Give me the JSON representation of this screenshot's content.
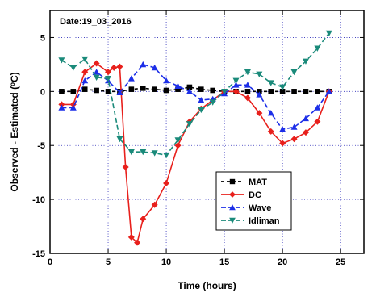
{
  "chart_data": {
    "type": "line",
    "annotation": "Date:19_03_2016",
    "xlabel": "Time (hours)",
    "ylabel_prefix": "Observed - Estimated (",
    "ylabel_degree": "o",
    "ylabel_suffix": "C)",
    "xlim": [
      0,
      27
    ],
    "ylim": [
      -15,
      7.5
    ],
    "xticks": [
      0,
      5,
      10,
      15,
      20,
      25
    ],
    "yticks": [
      5,
      0,
      -5,
      -10,
      -15
    ],
    "grid": true,
    "legend_position": "lower-right",
    "series": [
      {
        "name": "MAT",
        "color": "#000000",
        "marker": "square",
        "x": [
          1,
          2,
          3,
          4,
          5,
          6,
          7,
          8,
          9,
          10,
          11,
          12,
          13,
          14,
          15,
          16,
          17,
          18,
          19,
          20,
          21,
          22,
          23,
          24
        ],
        "y": [
          0,
          0,
          0.2,
          0.1,
          0,
          0,
          0.2,
          0.3,
          0.2,
          0.1,
          0.2,
          0.4,
          0.2,
          0.1,
          0,
          0,
          0,
          0,
          0,
          0,
          0,
          0,
          0,
          0
        ]
      },
      {
        "name": "DC",
        "color": "#e8201c",
        "marker": "diamond",
        "x": [
          1,
          2,
          3,
          4,
          5,
          5.5,
          6,
          6.5,
          7,
          7.5,
          8,
          9,
          10,
          11,
          12,
          13,
          14,
          15,
          16,
          17,
          18,
          19,
          20,
          21,
          22,
          23,
          24
        ],
        "y": [
          -1.2,
          -1.2,
          1.8,
          2.6,
          1.8,
          2.2,
          2.3,
          -7,
          -13.5,
          -14,
          -11.8,
          -10.5,
          -8.5,
          -5,
          -2.8,
          -1.6,
          -0.8,
          0,
          0,
          -0.6,
          -2,
          -3.7,
          -4.8,
          -4.4,
          -3.8,
          -2.8,
          0
        ]
      },
      {
        "name": "Wave",
        "color": "#1c2ee8",
        "marker": "triangle-up",
        "x": [
          1,
          2,
          3,
          4,
          5,
          6,
          7,
          8,
          9,
          10,
          11,
          12,
          13,
          14,
          15,
          16,
          17,
          18,
          19,
          20,
          21,
          22,
          23,
          24
        ],
        "y": [
          -1.5,
          -1.5,
          1,
          1.8,
          1,
          -0.1,
          1.2,
          2.5,
          2.2,
          1,
          0.5,
          0,
          -0.8,
          -0.7,
          -0.2,
          0.6,
          0.6,
          -0.3,
          -2,
          -3.5,
          -3.3,
          -2.5,
          -1.5,
          0
        ]
      },
      {
        "name": "Idliman",
        "color": "#1a8a7a",
        "marker": "triangle-down",
        "x": [
          1,
          2,
          3,
          4,
          5,
          6,
          7,
          8,
          9,
          10,
          11,
          12,
          13,
          14,
          15,
          16,
          17,
          18,
          19,
          20,
          21,
          22,
          23,
          24
        ],
        "y": [
          2.9,
          2.2,
          3,
          1.3,
          1.2,
          -4.4,
          -5.6,
          -5.6,
          -5.7,
          -5.9,
          -4.5,
          -3,
          -1.7,
          -1.0,
          0,
          1.0,
          1.8,
          1.6,
          0.8,
          0.4,
          1.8,
          2.8,
          4.0,
          5.4
        ]
      }
    ]
  }
}
